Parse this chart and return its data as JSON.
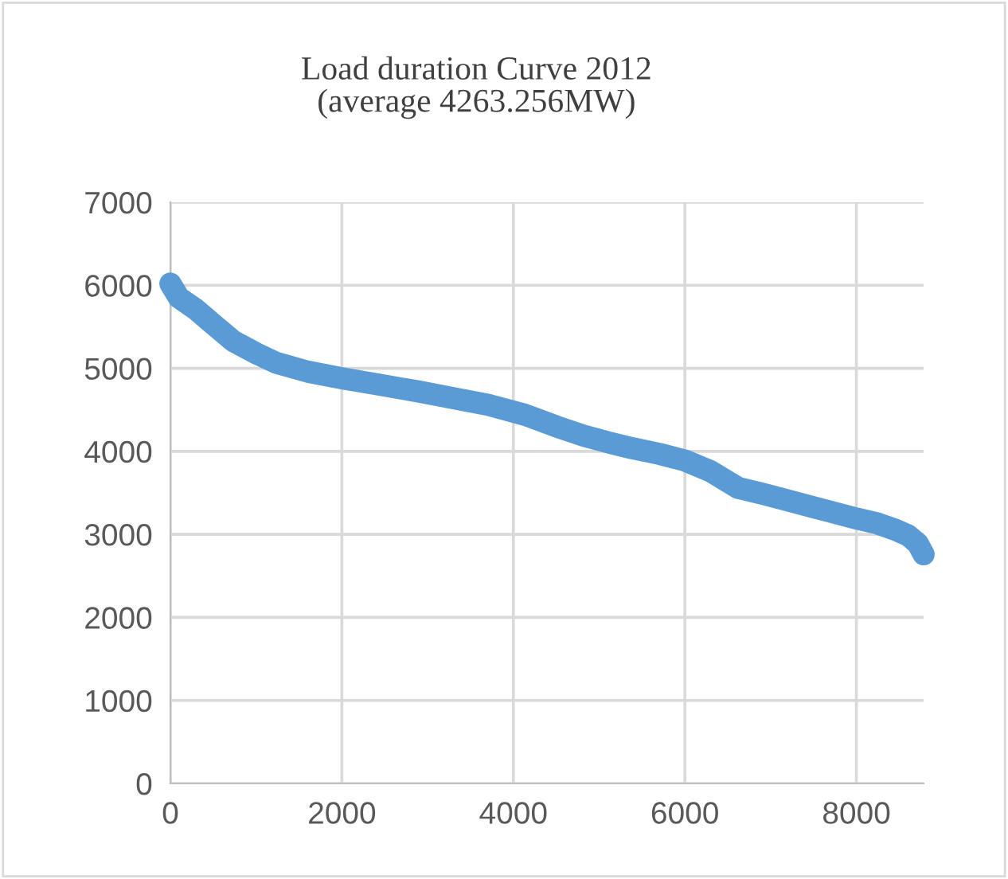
{
  "chart_data": {
    "type": "line",
    "title": "Load duration Curve 2012\n(average 4263.256MW)",
    "x": [
      0,
      100,
      297,
      500,
      731,
      1000,
      1226,
      1600,
      2000,
      2450,
      2897,
      3300,
      3703,
      4136,
      4500,
      4817,
      5100,
      5374,
      5700,
      6000,
      6300,
      6620,
      6900,
      7231,
      7600,
      8004,
      8250,
      8468,
      8600,
      8716,
      8784
    ],
    "series": [
      {
        "color": "#5b9bd5",
        "values": [
          6020,
          5850,
          5710,
          5530,
          5330,
          5180,
          5070,
          4960,
          4880,
          4800,
          4720,
          4640,
          4560,
          4440,
          4300,
          4190,
          4110,
          4040,
          3970,
          3890,
          3760,
          3560,
          3490,
          3400,
          3300,
          3190,
          3130,
          3050,
          2990,
          2890,
          2760
        ]
      }
    ],
    "xlim": [
      0,
      8784
    ],
    "xticks": [
      0,
      2000,
      4000,
      6000,
      8000
    ],
    "ylim": [
      0,
      7000
    ],
    "yticks": [
      0,
      1000,
      2000,
      3000,
      4000,
      5000,
      6000,
      7000
    ],
    "grid": true,
    "legend": false,
    "line_style": "solid"
  }
}
